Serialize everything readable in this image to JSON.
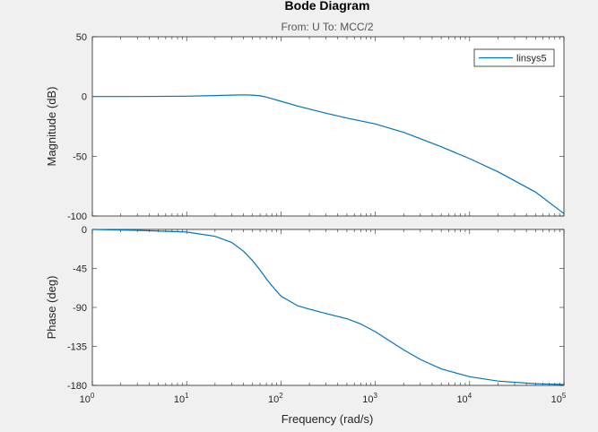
{
  "chart_data": {
    "type": "line",
    "title": "Bode Diagram",
    "subtitle": "From: U  To: MCC/2",
    "xlabel": "Frequency  (rad/s)",
    "xscale": "log",
    "xlim": [
      1,
      100000
    ],
    "x_ticks": [
      {
        "base": "10",
        "exp": "0"
      },
      {
        "base": "10",
        "exp": "1"
      },
      {
        "base": "10",
        "exp": "2"
      },
      {
        "base": "10",
        "exp": "3"
      },
      {
        "base": "10",
        "exp": "4"
      },
      {
        "base": "10",
        "exp": "5"
      }
    ],
    "legend": {
      "placement": "top-right",
      "entries": [
        "linsys5"
      ]
    },
    "colors": {
      "series": "#0072bd",
      "axes_bg": "#ffffff",
      "figure_bg": "#f0f0f0",
      "axis": "#262626"
    },
    "panels": [
      {
        "name": "magnitude",
        "ylabel": "Magnitude (dB)",
        "ylim": [
          -100,
          50
        ],
        "yticks": [
          "50",
          "0",
          "-50",
          "-100"
        ],
        "series": [
          {
            "name": "linsys5",
            "x": [
              1,
              3,
              10,
              20,
              30,
              40,
              50,
              60,
              70,
              80,
              100,
              150,
              200,
              300,
              500,
              1000,
              2000,
              5000,
              10000,
              20000,
              50000,
              100000
            ],
            "y": [
              0,
              0,
              0.3,
              0.8,
              1.2,
              1.4,
              1.2,
              0.6,
              -0.5,
              -1.8,
              -4,
              -8,
              -10.5,
              -14,
              -18,
              -23,
              -30,
              -42,
              -52,
              -63,
              -80,
              -98
            ]
          }
        ]
      },
      {
        "name": "phase",
        "ylabel": "Phase (deg)",
        "ylim": [
          -180,
          0
        ],
        "yticks": [
          "0",
          "-45",
          "-90",
          "-135",
          "-180"
        ],
        "series": [
          {
            "name": "linsys5",
            "x": [
              1,
              3,
              10,
              20,
              30,
              40,
              50,
              60,
              70,
              80,
              100,
              150,
              200,
              300,
              500,
              700,
              1000,
              2000,
              3000,
              5000,
              10000,
              20000,
              50000,
              100000
            ],
            "y": [
              0,
              -1,
              -3,
              -8,
              -15,
              -25,
              -36,
              -47,
              -57,
              -65,
              -77,
              -88,
              -92,
              -97,
              -103,
              -109,
              -118,
              -139,
              -150,
              -161,
              -170,
              -175,
              -178,
              -179
            ]
          }
        ]
      }
    ]
  }
}
